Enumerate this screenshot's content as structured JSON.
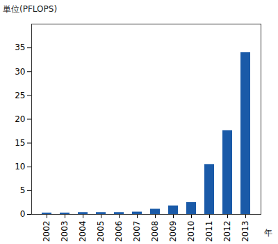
{
  "chart_data": {
    "type": "bar",
    "ylabel": "単位(PFLOPS)",
    "xlabel": "年",
    "categories": [
      "2002",
      "2003",
      "2004",
      "2005",
      "2006",
      "2007",
      "2008",
      "2009",
      "2010",
      "2011",
      "2012",
      "2013"
    ],
    "values": [
      0.3,
      0.3,
      0.4,
      0.4,
      0.4,
      0.5,
      1.1,
      1.8,
      2.5,
      10.5,
      17.6,
      34
    ],
    "color": "#1a5aa8",
    "ylim": [
      0,
      40
    ],
    "yticks": [
      0,
      5,
      10,
      15,
      20,
      25,
      30,
      35
    ],
    "grid": false
  }
}
